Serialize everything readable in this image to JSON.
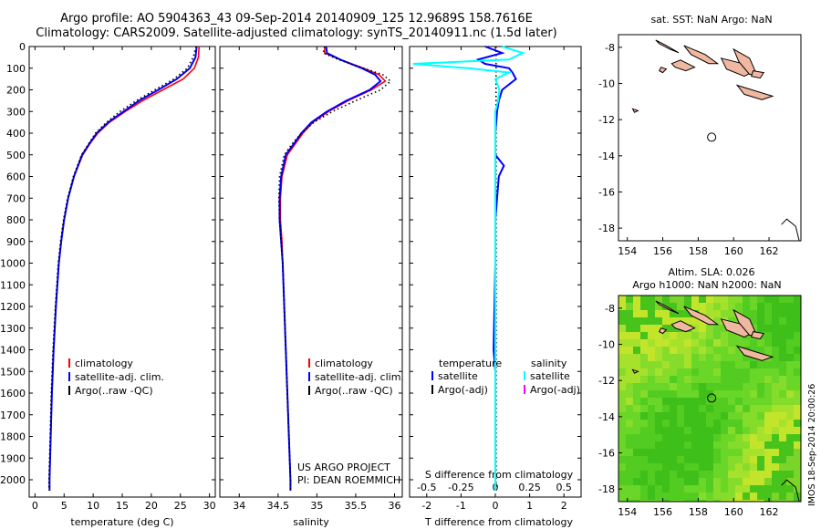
{
  "header": {
    "line1": "Argo profile: AO 5904363_43 09-Sep-2014 20140909_125 12.9689S 158.7616E",
    "line2": "Climatology: CARS2009. Satellite-adjusted climatology: synTS_20140911.nc (1.5d later)"
  },
  "side_label": "IMOS 18-Sep-2014 20:00:26",
  "colors": {
    "climatology": "#ff0000",
    "satellite": "#0000ff",
    "argo": "#000000",
    "sal_satellite": "#00ffff",
    "sal_argo": "#ff00ff",
    "land": "#f0b8a0",
    "sst_bg": "#ffffff",
    "sla_bg": "#5ad21e"
  },
  "chart_data": [
    {
      "type": "line",
      "name": "temperature-profile",
      "xlabel": "temperature (deg C)",
      "ylabel": "",
      "xlim": [
        -1,
        31
      ],
      "ylim": [
        2080,
        0
      ],
      "xticks": [
        0,
        5,
        10,
        15,
        20,
        25,
        30
      ],
      "yticks": [
        0,
        100,
        200,
        300,
        400,
        500,
        600,
        700,
        800,
        900,
        1000,
        1100,
        1200,
        1300,
        1400,
        1500,
        1600,
        1700,
        1800,
        1900,
        2000
      ],
      "y": [
        0,
        50,
        100,
        150,
        200,
        250,
        300,
        350,
        400,
        450,
        500,
        600,
        700,
        800,
        900,
        1000,
        1200,
        1400,
        1600,
        1800,
        2000,
        2050
      ],
      "series": [
        {
          "name": "climatology",
          "values": [
            28.2,
            28.1,
            27.4,
            25.5,
            22.0,
            18.5,
            15.5,
            12.8,
            10.8,
            9.4,
            8.2,
            6.7,
            5.7,
            5.0,
            4.5,
            4.1,
            3.6,
            3.2,
            2.9,
            2.7,
            2.5,
            2.5
          ]
        },
        {
          "name": "satellite-adj. clim.",
          "values": [
            27.8,
            27.6,
            26.6,
            24.4,
            21.2,
            17.9,
            15.2,
            12.6,
            10.6,
            9.3,
            8.1,
            6.7,
            5.7,
            5.0,
            4.5,
            4.1,
            3.6,
            3.2,
            2.9,
            2.7,
            2.5,
            2.5
          ]
        },
        {
          "name": "Argo(..raw -QC)",
          "values": [
            27.7,
            27.2,
            26.2,
            23.9,
            20.6,
            17.4,
            14.6,
            12.3,
            10.4,
            9.2,
            8.0,
            6.6,
            5.6,
            4.9,
            4.4,
            4.0,
            3.5,
            3.1,
            2.8,
            2.6,
            2.4,
            2.4
          ]
        }
      ],
      "legend": [
        "climatology",
        "satellite-adj. clim.",
        "Argo(..raw -QC)"
      ]
    },
    {
      "type": "line",
      "name": "salinity-profile",
      "xlabel": "salinity",
      "xlim": [
        33.75,
        36.1
      ],
      "ylim": [
        2080,
        0
      ],
      "xticks": [
        34,
        34.5,
        35,
        35.5,
        36
      ],
      "y": [
        0,
        30,
        60,
        100,
        130,
        160,
        200,
        250,
        300,
        350,
        400,
        450,
        500,
        600,
        700,
        800,
        900,
        1000,
        1200,
        1400,
        1600,
        1800,
        2000,
        2050
      ],
      "series": [
        {
          "name": "climatology",
          "values": [
            35.1,
            35.1,
            35.3,
            35.6,
            35.8,
            35.88,
            35.7,
            35.4,
            35.15,
            34.95,
            34.82,
            34.72,
            34.62,
            34.55,
            34.53,
            34.53,
            34.55,
            34.56,
            34.58,
            34.6,
            34.62,
            34.64,
            34.66,
            34.66
          ]
        },
        {
          "name": "satellite-adj. clim.",
          "values": [
            35.12,
            35.13,
            35.3,
            35.58,
            35.75,
            35.82,
            35.68,
            35.38,
            35.13,
            34.93,
            34.8,
            34.7,
            34.6,
            34.54,
            34.52,
            34.52,
            34.54,
            34.56,
            34.58,
            34.6,
            34.62,
            34.64,
            34.66,
            34.66
          ]
        },
        {
          "name": "Argo(..raw -QC)",
          "values": [
            35.1,
            35.08,
            35.28,
            35.6,
            35.85,
            35.95,
            35.82,
            35.5,
            35.2,
            34.96,
            34.8,
            34.68,
            34.58,
            34.52,
            34.51,
            34.52,
            34.54,
            34.56,
            34.58,
            34.6,
            34.62,
            34.64,
            34.66,
            34.66
          ]
        }
      ],
      "legend": [
        "climatology",
        "satellite-adj. clim.",
        "Argo(..raw -QC)"
      ],
      "annotation": [
        "US ARGO PROJECT",
        "PI: DEAN ROEMMICH"
      ]
    },
    {
      "type": "line",
      "name": "difference-profile",
      "xlabel": "T difference from climatology",
      "xlabel_top": "S difference from climatology",
      "xlim": [
        -2.5,
        2.5
      ],
      "ylim": [
        2080,
        0
      ],
      "xticks": [
        -2,
        -1,
        0,
        1,
        2
      ],
      "sticks": [
        -0.5,
        -0.25,
        0,
        0.25,
        0.5
      ],
      "y": [
        0,
        30,
        60,
        80,
        100,
        120,
        150,
        200,
        250,
        300,
        400,
        500,
        550,
        600,
        700,
        800,
        1000,
        1400,
        1500,
        1800,
        2050
      ],
      "series": [
        {
          "name": "T satellite",
          "values": [
            -0.3,
            0.2,
            -0.5,
            -0.3,
            0.4,
            0.5,
            0.6,
            0.2,
            0.1,
            0.05,
            0.0,
            0.0,
            0.25,
            0.1,
            0.05,
            0.0,
            0.0,
            -0.05,
            0.0,
            0.0,
            0.0
          ]
        },
        {
          "name": "S satellite",
          "values": [
            0.05,
            0.2,
            0.1,
            -0.6,
            -0.2,
            0.1,
            0.0,
            0.03,
            0.02,
            0.0,
            0.0,
            0.0,
            0.0,
            0.0,
            0.0,
            0.0,
            0.0,
            0.0,
            0.0,
            0.0,
            0.0
          ]
        }
      ],
      "legend": {
        "temperature": [
          "satellite",
          "Argo(-adj)"
        ],
        "salinity": [
          "satellite",
          "Argo(-adj)"
        ]
      },
      "legend_titles": [
        "temperature",
        "salinity"
      ]
    },
    {
      "type": "map",
      "name": "sst-map",
      "title": "sat. SST: NaN Argo: NaN",
      "xlim": [
        153.5,
        163.8
      ],
      "ylim": [
        -18.7,
        -7.3
      ],
      "xticks": [
        154,
        156,
        158,
        160,
        162
      ],
      "yticks": [
        -8,
        -10,
        -12,
        -14,
        -16,
        -18
      ],
      "argo_position": [
        158.76,
        -12.97
      ]
    },
    {
      "type": "map",
      "name": "sla-map",
      "title": "Altim. SLA: 0.026",
      "subtitle": "Argo h1000: NaN h2000: NaN",
      "xlim": [
        153.5,
        163.8
      ],
      "ylim": [
        -18.7,
        -7.3
      ],
      "xticks": [
        154,
        156,
        158,
        160,
        162
      ],
      "yticks": [
        -8,
        -10,
        -12,
        -14,
        -16,
        -18
      ],
      "argo_position": [
        158.76,
        -12.97
      ]
    }
  ]
}
